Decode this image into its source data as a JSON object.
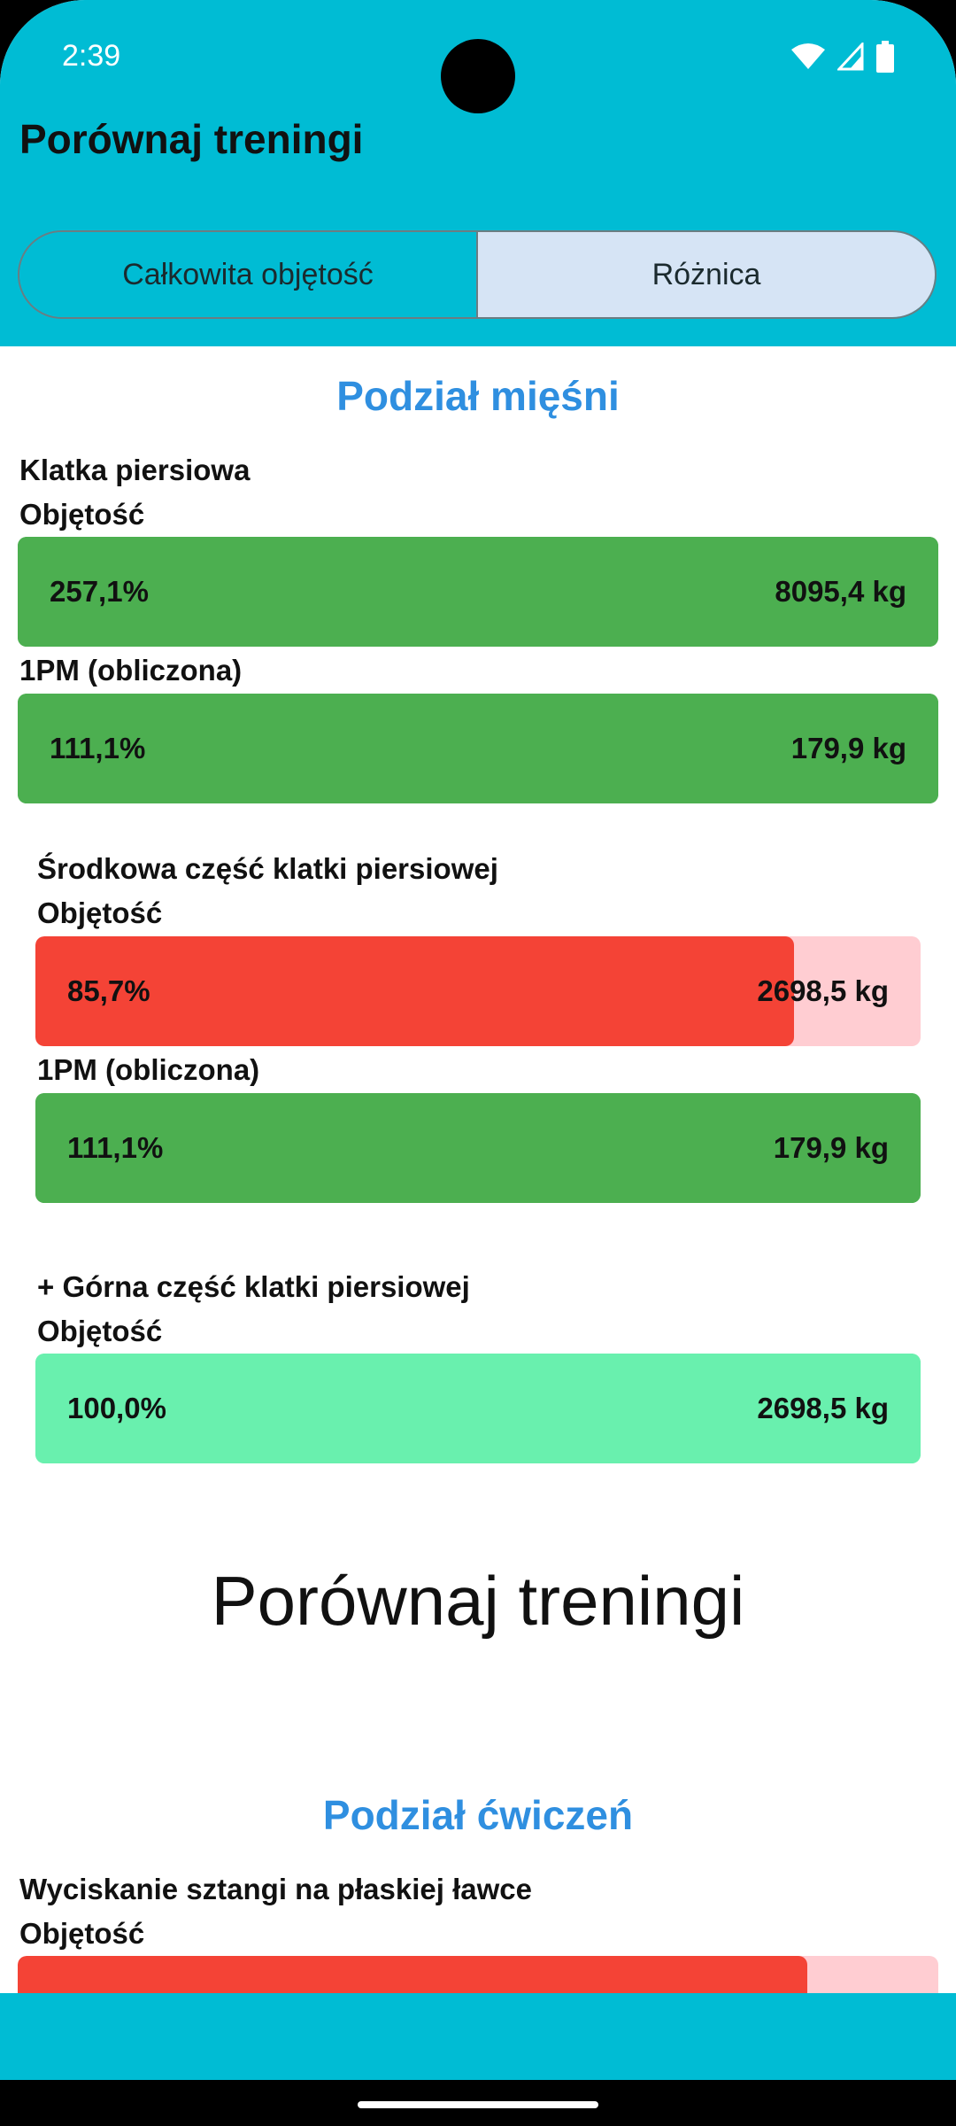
{
  "status_bar": {
    "time": "2:39",
    "icons": [
      "wifi-icon",
      "signal-icon",
      "battery-icon"
    ]
  },
  "header": {
    "title": "Porównaj treningi",
    "tabs": [
      {
        "label": "Całkowita objętość",
        "selected": false
      },
      {
        "label": "Różnica",
        "selected": true
      }
    ]
  },
  "muscles": {
    "title": "Podział mięśni",
    "groups": [
      {
        "name": "Klatka piersiowa",
        "volume_label": "Objętość",
        "volume_pct": "257,1%",
        "volume_value": "8095,4 kg",
        "volume_fill": 1.0,
        "orm_label": "1PM (obliczona)",
        "orm_pct": "111,1%",
        "orm_value": "179,9 kg",
        "orm_fill": 1.0
      },
      {
        "name": "Środkowa część klatki piersiowej",
        "volume_label": "Objętość",
        "volume_pct": "85,7%",
        "volume_value": "2698,5 kg",
        "volume_fill": 0.857,
        "orm_label": "1PM (obliczona)",
        "orm_pct": "111,1%",
        "orm_value": "179,9 kg",
        "orm_fill": 1.0
      },
      {
        "name": "+ Górna część klatki piersiowej",
        "volume_label": "Objętość",
        "volume_pct": "100,0%",
        "volume_value": "2698,5 kg",
        "volume_fill": 1.0
      }
    ]
  },
  "big_heading": "Porównaj treningi",
  "exercises": {
    "title": "Podział ćwiczeń",
    "items": [
      {
        "name": "Wyciskanie sztangi na płaskiej ławce",
        "volume_label": "Objętość"
      }
    ]
  },
  "colors": {
    "primary": "#00BCD4",
    "increase": "#4CAF50",
    "decrease": "#F44336",
    "decrease_track": "#FFCDD2",
    "neutral": "#69F0AE",
    "section_title": "#2F8FE0",
    "tab_selected": "#D6E4F5"
  }
}
